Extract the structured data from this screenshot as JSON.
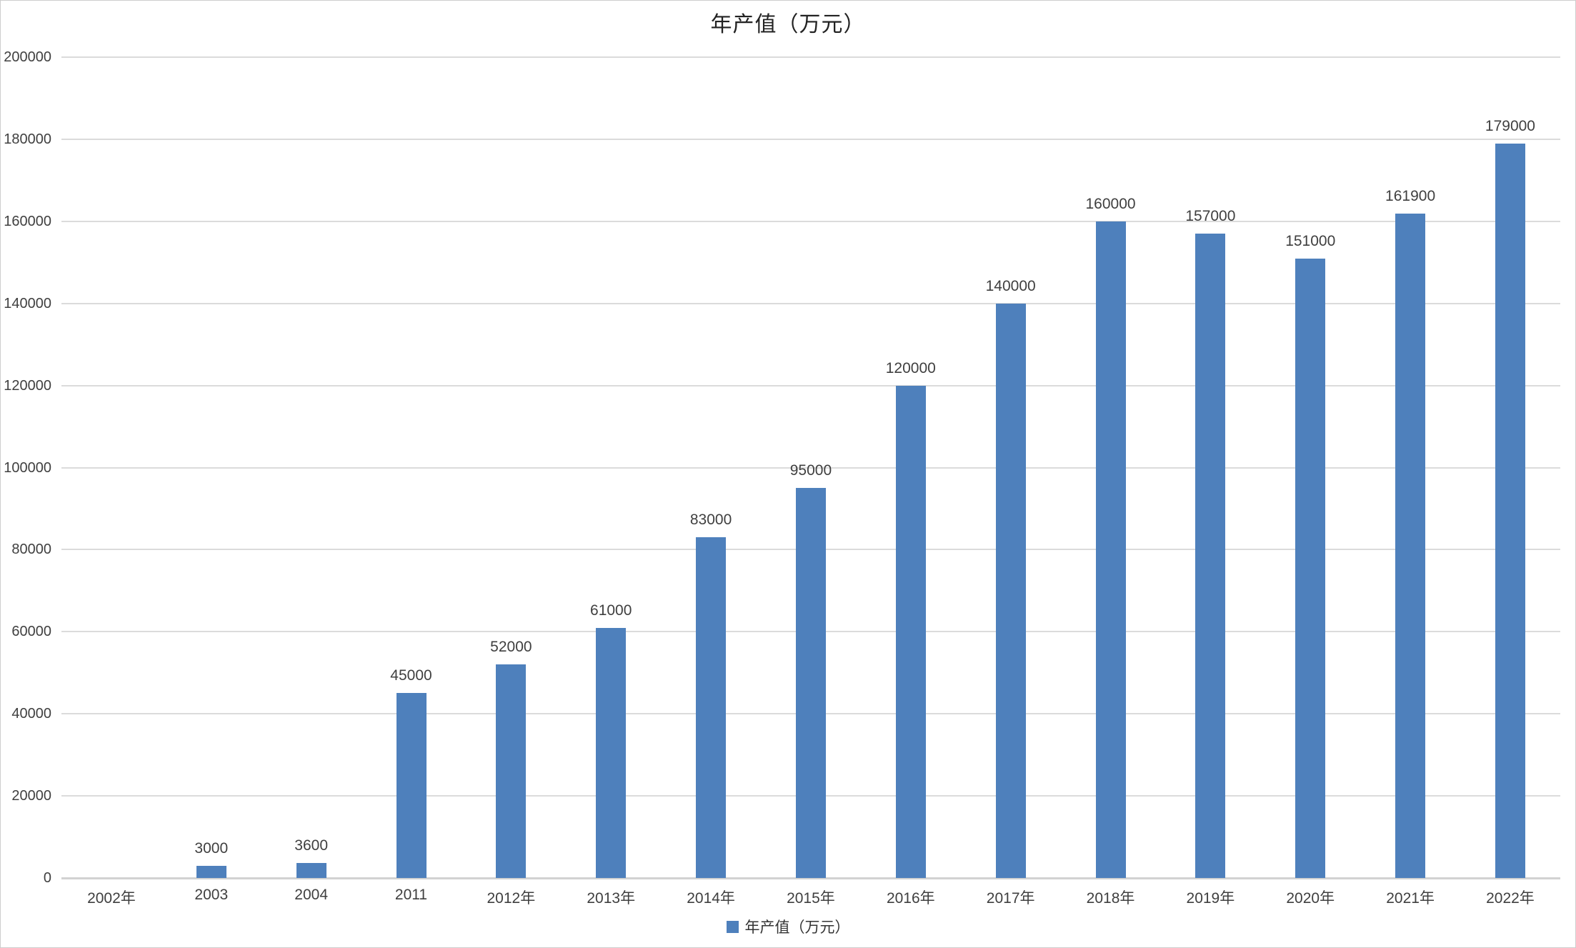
{
  "chart_data": {
    "type": "bar",
    "title": "年产值（万元）",
    "legend_label": "年产值（万元）",
    "legend_position": "bottom",
    "grid": true,
    "categories": [
      "2002年",
      "2003",
      "2004",
      "2011",
      "2012年",
      "2013年",
      "2014年",
      "2015年",
      "2016年",
      "2017年",
      "2018年",
      "2019年",
      "2020年",
      "2021年",
      "2022年"
    ],
    "values": [
      0,
      3000,
      3600,
      45000,
      52000,
      61000,
      83000,
      95000,
      120000,
      140000,
      160000,
      157000,
      151000,
      161900,
      179000
    ],
    "data_labels": [
      "",
      "3000",
      "3600",
      "45000",
      "52000",
      "61000",
      "83000",
      "95000",
      "120000",
      "140000",
      "160000",
      "157000",
      "151000",
      "161900",
      "179000"
    ],
    "xlabel": "",
    "ylabel": "",
    "ylim": [
      0,
      200000
    ],
    "ytick_step": 20000,
    "yticks": [
      0,
      20000,
      40000,
      60000,
      80000,
      100000,
      120000,
      140000,
      160000,
      180000,
      200000
    ]
  },
  "colors": {
    "bar": "#4E80BC",
    "gridline": "#DBDBDB",
    "axis_line": "#D2D2D2",
    "tick_text": "#404040",
    "title_text": "#222222",
    "border": "#CDCDCD",
    "background": "#FFFFFF"
  }
}
